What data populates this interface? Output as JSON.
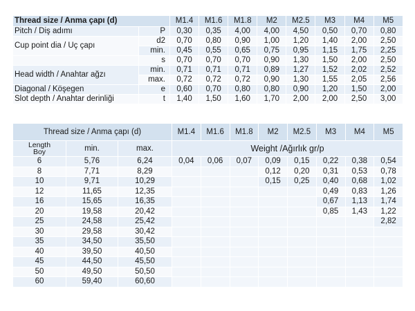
{
  "table1": {
    "header": [
      "Thread size / Anma çapı (d)",
      "M1.4",
      "M1.6",
      "M1.8",
      "M2",
      "M2.5",
      "M3",
      "M4",
      "M5"
    ],
    "rows": [
      {
        "label": "Pitch / Diş adımı",
        "symbol": "P",
        "values": [
          "0,30",
          "0,35",
          "4,00",
          "4,00",
          "4,50",
          "0,50",
          "0,70",
          "0,80"
        ]
      },
      {
        "label": "Cup point dia / Uç çapı",
        "symbol": "d2",
        "values": [
          "0,70",
          "0,80",
          "0,90",
          "1,00",
          "1,20",
          "1,40",
          "2,00",
          "2,50"
        ]
      },
      {
        "label": null,
        "symbol": "min.",
        "values": [
          "0,45",
          "0,55",
          "0,65",
          "0,75",
          "0,95",
          "1,15",
          "1,75",
          "2,25"
        ]
      },
      {
        "label": null,
        "symbol": "s",
        "values": [
          "0,70",
          "0,70",
          "0,70",
          "0,90",
          "1,30",
          "1,50",
          "2,00",
          "2,50"
        ]
      },
      {
        "label": "Head width / Anahtar ağzı",
        "symbol": "min.",
        "values": [
          "0,71",
          "0,71",
          "0,71",
          "0,89",
          "1,27",
          "1,52",
          "2,02",
          "2,52"
        ]
      },
      {
        "label": null,
        "symbol": "max.",
        "values": [
          "0,72",
          "0,72",
          "0,72",
          "0,90",
          "1,30",
          "1,55",
          "2,05",
          "2,56"
        ]
      },
      {
        "label": "Diagonal / Köşegen",
        "symbol": "e",
        "values": [
          "0,60",
          "0,70",
          "0,80",
          "0,80",
          "0,90",
          "1,20",
          "1,50",
          "2,00"
        ]
      },
      {
        "label": "Slot depth / Anahtar derinliği",
        "symbol": "t",
        "values": [
          "1,40",
          "1,50",
          "1,60",
          "1,70",
          "2,00",
          "2,00",
          "2,50",
          "3,00"
        ]
      }
    ]
  },
  "table2": {
    "header": [
      "Thread size / Anma çapı (d)",
      "M1.4",
      "M1.6",
      "M1.8",
      "M2",
      "M2.5",
      "M3",
      "M4",
      "M5"
    ],
    "subheader": {
      "length": [
        "Length",
        "Boy"
      ],
      "min": "min.",
      "max": "max.",
      "weight": "Weight /Ağırlık gr/p"
    },
    "rows": [
      {
        "length": "6",
        "min": "5,76",
        "max": "6,24",
        "weights": [
          "0,04",
          "0,06",
          "0,07",
          "0,09",
          "0,15",
          "0,22",
          "0,38",
          "0,54"
        ]
      },
      {
        "length": "8",
        "min": "7,71",
        "max": "8,29",
        "weights": [
          null,
          null,
          null,
          "0,12",
          "0,20",
          "0,31",
          "0,53",
          "0,78"
        ]
      },
      {
        "length": "10",
        "min": "9,71",
        "max": "10,29",
        "weights": [
          null,
          null,
          null,
          "0,15",
          "0,25",
          "0,40",
          "0,68",
          "1,02"
        ]
      },
      {
        "length": "12",
        "min": "11,65",
        "max": "12,35",
        "weights": [
          null,
          null,
          null,
          null,
          null,
          "0,49",
          "0,83",
          "1,26"
        ]
      },
      {
        "length": "16",
        "min": "15,65",
        "max": "16,35",
        "weights": [
          null,
          null,
          null,
          null,
          null,
          "0,67",
          "1,13",
          "1,74"
        ]
      },
      {
        "length": "20",
        "min": "19,58",
        "max": "20,42",
        "weights": [
          null,
          null,
          null,
          null,
          null,
          "0,85",
          "1,43",
          "1,22"
        ]
      },
      {
        "length": "25",
        "min": "24,58",
        "max": "25,42",
        "weights": [
          null,
          null,
          null,
          null,
          null,
          null,
          null,
          "2,82"
        ]
      },
      {
        "length": "30",
        "min": "29,58",
        "max": "30,42",
        "weights": [
          null,
          null,
          null,
          null,
          null,
          null,
          null,
          null
        ]
      },
      {
        "length": "35",
        "min": "34,50",
        "max": "35,50",
        "weights": [
          null,
          null,
          null,
          null,
          null,
          null,
          null,
          null
        ]
      },
      {
        "length": "40",
        "min": "39,50",
        "max": "40,50",
        "weights": [
          null,
          null,
          null,
          null,
          null,
          null,
          null,
          null
        ]
      },
      {
        "length": "45",
        "min": "44,50",
        "max": "45,50",
        "weights": [
          null,
          null,
          null,
          null,
          null,
          null,
          null,
          null
        ]
      },
      {
        "length": "50",
        "min": "49,50",
        "max": "50,50",
        "weights": [
          null,
          null,
          null,
          null,
          null,
          null,
          null,
          null
        ]
      },
      {
        "length": "60",
        "min": "59,40",
        "max": "60,60",
        "weights": [
          null,
          null,
          null,
          null,
          null,
          null,
          null,
          null
        ]
      }
    ]
  }
}
